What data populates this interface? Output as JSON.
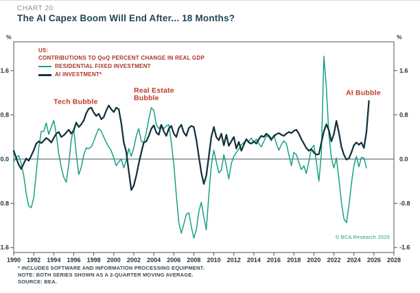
{
  "header": {
    "kicker": "CHART 20",
    "title": "The AI Capex Boom Will End After... 18 Months?"
  },
  "axes": {
    "unit_left": "%",
    "unit_right": "%"
  },
  "legend": {
    "region": "US:",
    "subtitle": "CONTRIBUTIONS TO QoQ PERCENT CHANGE IN REAL GDP",
    "series": [
      {
        "label": "RESIDENTIAL FIXED INVESTMENT",
        "color": "#16a085"
      },
      {
        "label": "AI INVESTMENT*",
        "color": "#14323e"
      }
    ]
  },
  "watermark": "© BCA Research 2025",
  "footnotes": [
    "* INCLUDES SOFTWARE AND INFORMATION PROCESSING EQUIPMENT.",
    "NOTE: BOTH SERIES SHOWN AS A 2-QUARTER MOVING AVERAGE.",
    "SOURCE: BEA."
  ],
  "chart_data": {
    "type": "line",
    "title": "US: Contributions to QoQ percent change in real GDP",
    "xlim": [
      1990,
      2028
    ],
    "ylim": [
      -1.69,
      2.12
    ],
    "x_ticks": [
      1990,
      1992,
      1994,
      1996,
      1998,
      2000,
      2002,
      2004,
      2006,
      2008,
      2010,
      2012,
      2014,
      2016,
      2018,
      2020,
      2022,
      2024,
      2026,
      2028
    ],
    "y_ticks": [
      [
        1.6,
        "1.6"
      ],
      [
        0.8,
        "0.8"
      ],
      [
        0,
        "0.0"
      ],
      [
        -0.8,
        "-0.8"
      ],
      [
        -1.6,
        "-1.6"
      ]
    ],
    "grid": false,
    "frame": true,
    "axis_color": "#46565f",
    "annotations": [
      {
        "text": "Tech Bubble",
        "x": 1996.2,
        "y": 0.95,
        "align": "center"
      },
      {
        "text": "Real Estate\nBubble",
        "x": 2002.0,
        "y": 1.02,
        "align": "left"
      },
      {
        "text": "AI Bubble",
        "x": 2023.2,
        "y": 1.12,
        "align": "left"
      }
    ],
    "series": [
      {
        "name": "RESIDENTIAL FIXED INVESTMENT",
        "color": "#16a085",
        "width": 1.5,
        "points": [
          [
            1990,
            -0.05
          ],
          [
            1990.25,
            0.03
          ],
          [
            1990.5,
            0.06
          ],
          [
            1990.75,
            -0.08
          ],
          [
            1991,
            -0.3
          ],
          [
            1991.25,
            -0.62
          ],
          [
            1991.5,
            -0.85
          ],
          [
            1991.75,
            -0.88
          ],
          [
            1992,
            -0.7
          ],
          [
            1992.25,
            -0.25
          ],
          [
            1992.5,
            0.2
          ],
          [
            1992.75,
            0.5
          ],
          [
            1993,
            0.5
          ],
          [
            1993.25,
            0.65
          ],
          [
            1993.5,
            0.45
          ],
          [
            1993.75,
            0.58
          ],
          [
            1994,
            0.7
          ],
          [
            1994.25,
            0.45
          ],
          [
            1994.5,
            0.1
          ],
          [
            1994.75,
            -0.15
          ],
          [
            1995,
            -0.33
          ],
          [
            1995.25,
            -0.42
          ],
          [
            1995.5,
            -0.1
          ],
          [
            1995.75,
            0.35
          ],
          [
            1996,
            0.55
          ],
          [
            1996.25,
            0.1
          ],
          [
            1996.5,
            -0.28
          ],
          [
            1996.75,
            -0.15
          ],
          [
            1997,
            0.08
          ],
          [
            1997.25,
            0.2
          ],
          [
            1997.5,
            0.19
          ],
          [
            1997.75,
            0.22
          ],
          [
            1998,
            0.32
          ],
          [
            1998.25,
            0.45
          ],
          [
            1998.5,
            0.55
          ],
          [
            1998.75,
            0.5
          ],
          [
            1999,
            0.4
          ],
          [
            1999.25,
            0.3
          ],
          [
            1999.5,
            0.22
          ],
          [
            1999.75,
            0.15
          ],
          [
            2000,
            0.02
          ],
          [
            2000.25,
            -0.12
          ],
          [
            2000.5,
            -0.05
          ],
          [
            2000.75,
            0
          ],
          [
            2001,
            -0.16
          ],
          [
            2001.25,
            -0.02
          ],
          [
            2001.5,
            0.19
          ],
          [
            2001.75,
            0.05
          ],
          [
            2002,
            0.2
          ],
          [
            2002.25,
            0.42
          ],
          [
            2002.5,
            0.55
          ],
          [
            2002.75,
            0.32
          ],
          [
            2003,
            0.3
          ],
          [
            2003.25,
            0.48
          ],
          [
            2003.5,
            0.72
          ],
          [
            2003.75,
            0.93
          ],
          [
            2004,
            0.88
          ],
          [
            2004.25,
            0.62
          ],
          [
            2004.5,
            0.55
          ],
          [
            2004.75,
            0.62
          ],
          [
            2005,
            0.55
          ],
          [
            2005.25,
            0.6
          ],
          [
            2005.5,
            0.62
          ],
          [
            2005.75,
            0.3
          ],
          [
            2006,
            -0.1
          ],
          [
            2006.25,
            -0.65
          ],
          [
            2006.5,
            -1.15
          ],
          [
            2006.75,
            -1.34
          ],
          [
            2007,
            -1.18
          ],
          [
            2007.25,
            -1
          ],
          [
            2007.5,
            -0.97
          ],
          [
            2007.75,
            -1.22
          ],
          [
            2008,
            -1.43
          ],
          [
            2008.25,
            -1.28
          ],
          [
            2008.5,
            -0.95
          ],
          [
            2008.75,
            -0.78
          ],
          [
            2009,
            -1.05
          ],
          [
            2009.25,
            -1.28
          ],
          [
            2009.5,
            -0.65
          ],
          [
            2009.75,
            -0.12
          ],
          [
            2010,
            0.16
          ],
          [
            2010.25,
            -0.05
          ],
          [
            2010.5,
            -0.25
          ],
          [
            2010.75,
            -0.2
          ],
          [
            2011,
            0.08
          ],
          [
            2011.25,
            -0.12
          ],
          [
            2011.5,
            -0.36
          ],
          [
            2011.75,
            -0.08
          ],
          [
            2012,
            0.05
          ],
          [
            2012.25,
            0.12
          ],
          [
            2012.5,
            0.18
          ],
          [
            2012.75,
            0.26
          ],
          [
            2013,
            0.3
          ],
          [
            2013.25,
            0.36
          ],
          [
            2013.5,
            0.32
          ],
          [
            2013.75,
            0.38
          ],
          [
            2014,
            0.3
          ],
          [
            2014.25,
            0.36
          ],
          [
            2014.5,
            0.28
          ],
          [
            2014.75,
            0.22
          ],
          [
            2015,
            0.32
          ],
          [
            2015.25,
            0.42
          ],
          [
            2015.5,
            0.4
          ],
          [
            2015.75,
            0.33
          ],
          [
            2016,
            0.44
          ],
          [
            2016.25,
            0.28
          ],
          [
            2016.5,
            0.16
          ],
          [
            2016.75,
            0.26
          ],
          [
            2017,
            0.33
          ],
          [
            2017.25,
            0.28
          ],
          [
            2017.5,
            0.08
          ],
          [
            2017.75,
            -0.12
          ],
          [
            2018,
            0.12
          ],
          [
            2018.25,
            0.08
          ],
          [
            2018.5,
            -0.06
          ],
          [
            2018.75,
            -0.19
          ],
          [
            2019,
            -0.12
          ],
          [
            2019.25,
            -0.26
          ],
          [
            2019.5,
            -0.04
          ],
          [
            2019.75,
            0.19
          ],
          [
            2020,
            0.25
          ],
          [
            2020.25,
            -0.05
          ],
          [
            2020.5,
            -0.4
          ],
          [
            2020.75,
            0.1
          ],
          [
            2021,
            1.86
          ],
          [
            2021.25,
            1.28
          ],
          [
            2021.5,
            0.45
          ],
          [
            2021.75,
            0.02
          ],
          [
            2022,
            -0.16
          ],
          [
            2022.25,
            0.02
          ],
          [
            2022.5,
            -0.35
          ],
          [
            2022.75,
            -0.78
          ],
          [
            2023,
            -1.08
          ],
          [
            2023.25,
            -1.15
          ],
          [
            2023.5,
            -0.85
          ],
          [
            2023.75,
            -0.45
          ],
          [
            2024,
            -0.12
          ],
          [
            2024.25,
            0.05
          ],
          [
            2024.5,
            -0.14
          ],
          [
            2024.75,
            0.03
          ],
          [
            2025,
            0.02
          ],
          [
            2025.25,
            -0.16
          ]
        ]
      },
      {
        "name": "AI INVESTMENT*",
        "color": "#14323e",
        "width": 2.3,
        "points": [
          [
            1990,
            0.15
          ],
          [
            1990.25,
            0.02
          ],
          [
            1990.5,
            -0.1
          ],
          [
            1990.75,
            -0.18
          ],
          [
            1991,
            -0.08
          ],
          [
            1991.25,
            0.01
          ],
          [
            1991.5,
            -0.03
          ],
          [
            1991.75,
            0.06
          ],
          [
            1992,
            0.16
          ],
          [
            1992.25,
            0.28
          ],
          [
            1992.5,
            0.32
          ],
          [
            1992.75,
            0.29
          ],
          [
            1993,
            0.33
          ],
          [
            1993.25,
            0.38
          ],
          [
            1993.5,
            0.35
          ],
          [
            1993.75,
            0.3
          ],
          [
            1994,
            0.38
          ],
          [
            1994.25,
            0.46
          ],
          [
            1994.5,
            0.49
          ],
          [
            1994.75,
            0.4
          ],
          [
            1995,
            0.43
          ],
          [
            1995.25,
            0.48
          ],
          [
            1995.5,
            0.53
          ],
          [
            1995.75,
            0.46
          ],
          [
            1996,
            0.52
          ],
          [
            1996.25,
            0.66
          ],
          [
            1996.5,
            0.58
          ],
          [
            1996.75,
            0.63
          ],
          [
            1997,
            0.7
          ],
          [
            1997.25,
            0.83
          ],
          [
            1997.5,
            0.91
          ],
          [
            1997.75,
            0.93
          ],
          [
            1998,
            0.84
          ],
          [
            1998.25,
            0.78
          ],
          [
            1998.5,
            0.82
          ],
          [
            1998.75,
            0.72
          ],
          [
            1999,
            0.76
          ],
          [
            1999.25,
            0.88
          ],
          [
            1999.5,
            0.97
          ],
          [
            1999.75,
            0.9
          ],
          [
            2000,
            0.85
          ],
          [
            2000.25,
            0.93
          ],
          [
            2000.5,
            0.9
          ],
          [
            2000.75,
            0.65
          ],
          [
            2001,
            0.3
          ],
          [
            2001.25,
            0.13
          ],
          [
            2001.5,
            -0.22
          ],
          [
            2001.75,
            -0.56
          ],
          [
            2002,
            -0.48
          ],
          [
            2002.25,
            -0.3
          ],
          [
            2002.5,
            -0.08
          ],
          [
            2002.75,
            0.12
          ],
          [
            2003,
            0.3
          ],
          [
            2003.25,
            0.32
          ],
          [
            2003.5,
            0.42
          ],
          [
            2003.75,
            0.55
          ],
          [
            2004,
            0.61
          ],
          [
            2004.25,
            0.48
          ],
          [
            2004.5,
            0.44
          ],
          [
            2004.75,
            0.62
          ],
          [
            2005,
            0.5
          ],
          [
            2005.25,
            0.42
          ],
          [
            2005.5,
            0.55
          ],
          [
            2005.75,
            0.6
          ],
          [
            2006,
            0.46
          ],
          [
            2006.25,
            0.4
          ],
          [
            2006.5,
            0.56
          ],
          [
            2006.75,
            0.62
          ],
          [
            2007,
            0.48
          ],
          [
            2007.25,
            0.42
          ],
          [
            2007.5,
            0.56
          ],
          [
            2007.75,
            0.6
          ],
          [
            2008,
            0.58
          ],
          [
            2008.25,
            0.35
          ],
          [
            2008.5,
            0.05
          ],
          [
            2008.75,
            -0.25
          ],
          [
            2009,
            -0.45
          ],
          [
            2009.25,
            -0.3
          ],
          [
            2009.5,
            0.05
          ],
          [
            2009.75,
            0.4
          ],
          [
            2010,
            0.58
          ],
          [
            2010.25,
            0.4
          ],
          [
            2010.5,
            0.34
          ],
          [
            2010.75,
            0.46
          ],
          [
            2011,
            0.25
          ],
          [
            2011.25,
            0.44
          ],
          [
            2011.5,
            0.24
          ],
          [
            2011.75,
            0.32
          ],
          [
            2012,
            0.4
          ],
          [
            2012.25,
            0.19
          ],
          [
            2012.5,
            0.31
          ],
          [
            2012.75,
            0.15
          ],
          [
            2013,
            0.26
          ],
          [
            2013.25,
            0.36
          ],
          [
            2013.5,
            0.3
          ],
          [
            2013.75,
            0.28
          ],
          [
            2014,
            0.32
          ],
          [
            2014.25,
            0.28
          ],
          [
            2014.5,
            0.36
          ],
          [
            2014.75,
            0.42
          ],
          [
            2015,
            0.4
          ],
          [
            2015.25,
            0.46
          ],
          [
            2015.5,
            0.42
          ],
          [
            2015.75,
            0.36
          ],
          [
            2016,
            0.41
          ],
          [
            2016.25,
            0.45
          ],
          [
            2016.5,
            0.47
          ],
          [
            2016.75,
            0.44
          ],
          [
            2017,
            0.42
          ],
          [
            2017.25,
            0.46
          ],
          [
            2017.5,
            0.49
          ],
          [
            2017.75,
            0.47
          ],
          [
            2018,
            0.51
          ],
          [
            2018.25,
            0.53
          ],
          [
            2018.5,
            0.46
          ],
          [
            2018.75,
            0.36
          ],
          [
            2019,
            0.28
          ],
          [
            2019.25,
            0.2
          ],
          [
            2019.5,
            0.15
          ],
          [
            2019.75,
            0.18
          ],
          [
            2020,
            0.12
          ],
          [
            2020.25,
            0.08
          ],
          [
            2020.5,
            0.09
          ],
          [
            2020.75,
            0.3
          ],
          [
            2021,
            0.5
          ],
          [
            2021.25,
            0.63
          ],
          [
            2021.5,
            0.52
          ],
          [
            2021.75,
            0.32
          ],
          [
            2022,
            0.45
          ],
          [
            2022.25,
            0.69
          ],
          [
            2022.5,
            0.48
          ],
          [
            2022.75,
            0.22
          ],
          [
            2023,
            0.08
          ],
          [
            2023.25,
            -0.01
          ],
          [
            2023.5,
            0.01
          ],
          [
            2023.75,
            0.12
          ],
          [
            2024,
            0.25
          ],
          [
            2024.25,
            0.3
          ],
          [
            2024.5,
            0.26
          ],
          [
            2024.75,
            0.3
          ],
          [
            2025,
            0.2
          ],
          [
            2025.25,
            0.48
          ],
          [
            2025.5,
            1.05
          ]
        ]
      }
    ]
  }
}
